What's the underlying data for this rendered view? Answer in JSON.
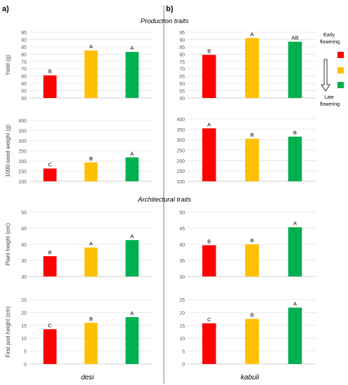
{
  "panels": {
    "a": "a)",
    "b": "b)"
  },
  "sections": {
    "production": "Production traits",
    "architectural": "Architectural traits"
  },
  "columns": {
    "left": "desi",
    "right": "kabuli"
  },
  "legend": {
    "top_label": "Early flowering",
    "bottom_label": "Late flowering",
    "colors": [
      "#ff0000",
      "#ffc000",
      "#00b050"
    ]
  },
  "chart_data": [
    {
      "id": "yield-desi",
      "type": "bar",
      "ylabel": "Yield (g)",
      "ylim": [
        50,
        95
      ],
      "yticks": [
        50,
        55,
        60,
        65,
        70,
        75,
        80,
        85,
        90,
        95
      ],
      "grid": true,
      "values": [
        65.5,
        82.5,
        81.5
      ],
      "labels": [
        "B",
        "A",
        "A"
      ],
      "colors": [
        "#ff0000",
        "#ffc000",
        "#00b050"
      ]
    },
    {
      "id": "yield-kabuli",
      "type": "bar",
      "ylabel": "",
      "ylim": [
        50,
        95
      ],
      "yticks": [
        50,
        55,
        60,
        65,
        70,
        75,
        80,
        85,
        90,
        95
      ],
      "grid": true,
      "values": [
        79.5,
        91,
        88.5
      ],
      "labels": [
        "B",
        "A",
        "AB"
      ],
      "colors": [
        "#ff0000",
        "#ffc000",
        "#00b050"
      ]
    },
    {
      "id": "seedweight-desi",
      "type": "bar",
      "ylabel": "1000-seed weight (g)",
      "ylim": [
        100,
        400
      ],
      "yticks": [
        100,
        150,
        200,
        250,
        300,
        350,
        400
      ],
      "grid": true,
      "values": [
        163,
        193,
        218
      ],
      "labels": [
        "C",
        "B",
        "A"
      ],
      "colors": [
        "#ff0000",
        "#ffc000",
        "#00b050"
      ]
    },
    {
      "id": "seedweight-kabuli",
      "type": "bar",
      "ylabel": "",
      "ylim": [
        100,
        400
      ],
      "yticks": [
        100,
        150,
        200,
        250,
        300,
        350,
        400
      ],
      "grid": true,
      "values": [
        355,
        305,
        315
      ],
      "labels": [
        "A",
        "B",
        "B"
      ],
      "colors": [
        "#ff0000",
        "#ffc000",
        "#00b050"
      ]
    },
    {
      "id": "plantheight-desi",
      "type": "bar",
      "ylabel": "Plant height (cm)",
      "ylim": [
        30,
        50
      ],
      "yticks": [
        30,
        35,
        40,
        45,
        50
      ],
      "grid": true,
      "values": [
        36.3,
        39,
        41.3
      ],
      "labels": [
        "B",
        "A",
        "A"
      ],
      "colors": [
        "#ff0000",
        "#ffc000",
        "#00b050"
      ]
    },
    {
      "id": "plantheight-kabuli",
      "type": "bar",
      "ylabel": "",
      "ylim": [
        30,
        50
      ],
      "yticks": [
        30,
        35,
        40,
        45,
        50
      ],
      "grid": true,
      "values": [
        39.7,
        40,
        45.3
      ],
      "labels": [
        "B",
        "B",
        "A"
      ],
      "colors": [
        "#ff0000",
        "#ffc000",
        "#00b050"
      ]
    },
    {
      "id": "podheight-desi",
      "type": "bar",
      "ylabel": "First pod height (cm)",
      "ylim": [
        0,
        25
      ],
      "yticks": [
        0,
        5,
        10,
        15,
        20,
        25
      ],
      "grid": true,
      "values": [
        13.5,
        16,
        18.2
      ],
      "labels": [
        "C",
        "B",
        "A"
      ],
      "colors": [
        "#ff0000",
        "#ffc000",
        "#00b050"
      ]
    },
    {
      "id": "podheight-kabuli",
      "type": "bar",
      "ylabel": "",
      "ylim": [
        0,
        25
      ],
      "yticks": [
        0,
        5,
        10,
        15,
        20,
        25
      ],
      "grid": true,
      "values": [
        15.8,
        17.5,
        21.9
      ],
      "labels": [
        "C",
        "B",
        "A"
      ],
      "colors": [
        "#ff0000",
        "#ffc000",
        "#00b050"
      ]
    }
  ]
}
